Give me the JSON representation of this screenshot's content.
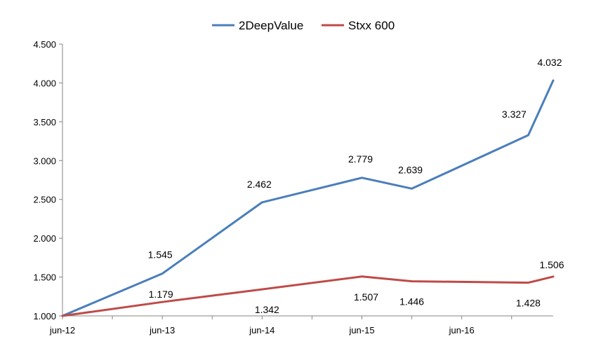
{
  "chart_data": {
    "type": "line",
    "title": "",
    "xlabel": "",
    "ylabel": "",
    "ylim": [
      1.0,
      4.5
    ],
    "y_ticks": [
      "1.000",
      "1.500",
      "2.000",
      "2.500",
      "3.000",
      "3.500",
      "4.000",
      "4.500"
    ],
    "x_ticks": [
      "jun-12",
      "jun-13",
      "jun-14",
      "jun-15",
      "jun-16"
    ],
    "grid": false,
    "legend_position": "top-center",
    "x": [
      0,
      12,
      24,
      36,
      42,
      56,
      59
    ],
    "series": [
      {
        "name": "2DeepValue",
        "color": "#4a7ebb",
        "values": [
          1.0,
          1.545,
          2.462,
          2.779,
          2.639,
          3.327,
          4.032
        ],
        "labels": [
          "",
          "1.545",
          "2.462",
          "2.779",
          "2.639",
          "3.327",
          "4.032"
        ]
      },
      {
        "name": "Stxx 600",
        "color": "#be4b48",
        "values": [
          1.0,
          1.179,
          1.342,
          1.507,
          1.446,
          1.428,
          1.506
        ],
        "labels": [
          "",
          "1.179",
          "1.342",
          "1.507",
          "1.446",
          "1.428",
          "1.506"
        ]
      }
    ]
  }
}
